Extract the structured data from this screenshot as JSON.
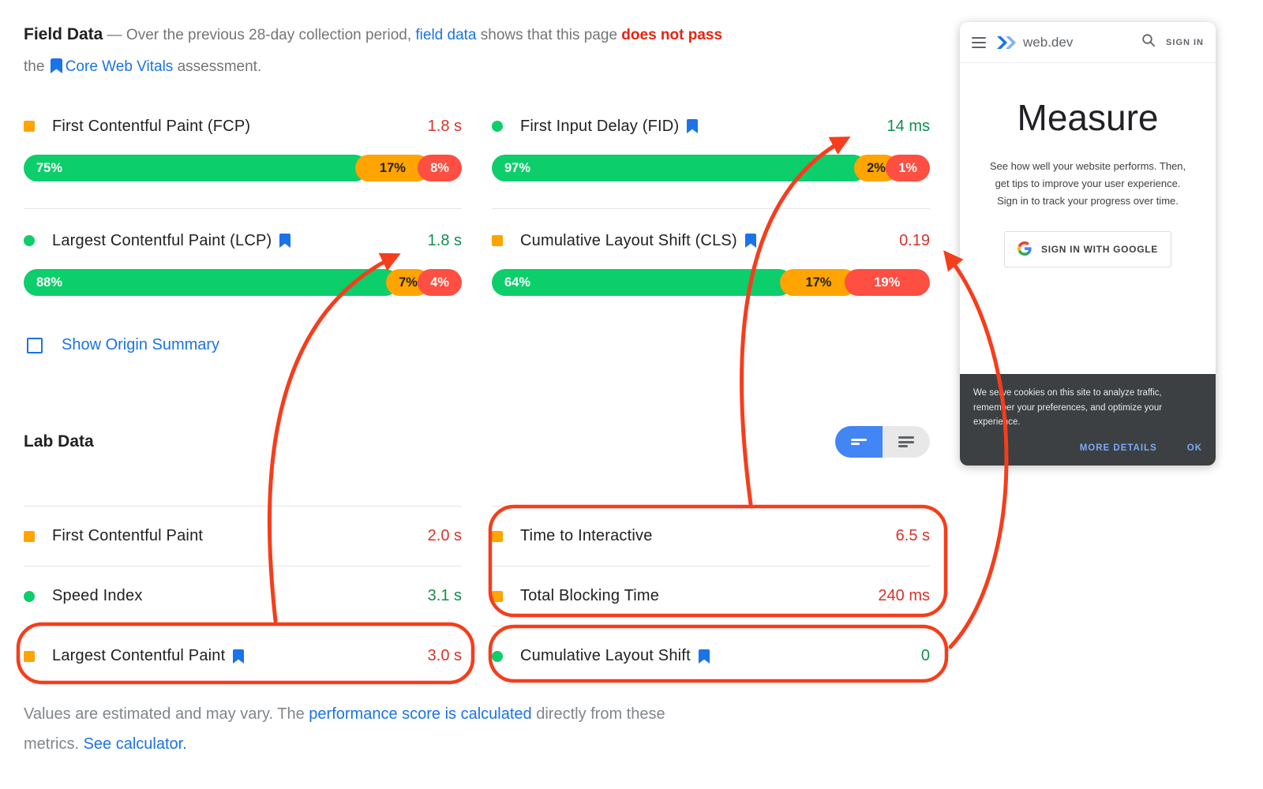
{
  "colors": {
    "bar_green": "#0cce6b",
    "bar_orange": "#ffa400",
    "bar_red": "#ff4e42",
    "value_green": "#0d904c",
    "value_red": "#d6332a",
    "link_blue": "#1a73e8",
    "annotation_red": "#f63d1c"
  },
  "header": {
    "title": "Field Data",
    "line1_a": " — Over the previous 28-day collection period, ",
    "link1": "field data",
    "line1_b": " shows that this page ",
    "fail": "does not pass",
    "line2_a": "the ",
    "link2": "Core Web Vitals",
    "line2_b": " assessment."
  },
  "field": {
    "columns": [
      [
        {
          "id": "fcp",
          "icon": "square",
          "label": "First Contentful Paint (FCP)",
          "bookmark": false,
          "value": "1.8 s",
          "status": "red",
          "segments": [
            {
              "label": "75%",
              "pct": 75,
              "tone": "green"
            },
            {
              "label": "17%",
              "pct": 17,
              "tone": "orange"
            },
            {
              "label": "8%",
              "pct": 8,
              "tone": "red"
            }
          ]
        },
        {
          "id": "lcp",
          "icon": "circle",
          "label": "Largest Contentful Paint (LCP)",
          "bookmark": true,
          "value": "1.8 s",
          "status": "green",
          "segments": [
            {
              "label": "88%",
              "pct": 88,
              "tone": "green"
            },
            {
              "label": "7%",
              "pct": 7,
              "tone": "orange"
            },
            {
              "label": "4%",
              "pct": 4,
              "tone": "red"
            }
          ]
        }
      ],
      [
        {
          "id": "fid",
          "icon": "circle",
          "label": "First Input Delay (FID)",
          "bookmark": true,
          "value": "14 ms",
          "status": "green",
          "segments": [
            {
              "label": "97%",
              "pct": 97,
              "tone": "green"
            },
            {
              "label": "2%",
              "pct": 2,
              "tone": "orange"
            },
            {
              "label": "1%",
              "pct": 1,
              "tone": "red"
            }
          ]
        },
        {
          "id": "cls",
          "icon": "square",
          "label": "Cumulative Layout Shift (CLS)",
          "bookmark": true,
          "value": "0.19",
          "status": "red",
          "segments": [
            {
              "label": "64%",
              "pct": 64,
              "tone": "green"
            },
            {
              "label": "17%",
              "pct": 17,
              "tone": "orange"
            },
            {
              "label": "19%",
              "pct": 19,
              "tone": "red"
            }
          ]
        }
      ]
    ],
    "origin_summary": "Show Origin Summary"
  },
  "lab": {
    "title": "Lab Data",
    "columns": [
      [
        {
          "id": "lab-fcp",
          "icon": "square",
          "label": "First Contentful Paint",
          "bookmark": false,
          "value": "2.0 s",
          "status": "red"
        },
        {
          "id": "lab-si",
          "icon": "circle",
          "label": "Speed Index",
          "bookmark": false,
          "value": "3.1 s",
          "status": "green"
        },
        {
          "id": "lab-lcp",
          "icon": "square",
          "label": "Largest Contentful Paint",
          "bookmark": true,
          "value": "3.0 s",
          "status": "red"
        }
      ],
      [
        {
          "id": "lab-tti",
          "icon": "square",
          "label": "Time to Interactive",
          "bookmark": false,
          "value": "6.5 s",
          "status": "red"
        },
        {
          "id": "lab-tbt",
          "icon": "square",
          "label": "Total Blocking Time",
          "bookmark": false,
          "value": "240 ms",
          "status": "red"
        },
        {
          "id": "lab-cls",
          "icon": "circle",
          "label": "Cumulative Layout Shift",
          "bookmark": true,
          "value": "0",
          "status": "green"
        }
      ]
    ]
  },
  "footer": {
    "line1_a": "Values are estimated and may vary. The ",
    "link1": "performance score is calculated",
    "line1_b": " directly from these",
    "line2_a": "metrics. ",
    "link2": "See calculator."
  },
  "phone": {
    "brand": "web.dev",
    "signin": "SIGN IN",
    "heading": "Measure",
    "body": "See how well your website performs. Then, get tips to improve your user experience. Sign in to track your progress over time.",
    "google_button": "SIGN IN WITH GOOGLE",
    "cookie_text": "We serve cookies on this site to analyze traffic, remember your preferences, and optimize your experience.",
    "cookie_more": "MORE DETAILS",
    "cookie_ok": "OK"
  }
}
